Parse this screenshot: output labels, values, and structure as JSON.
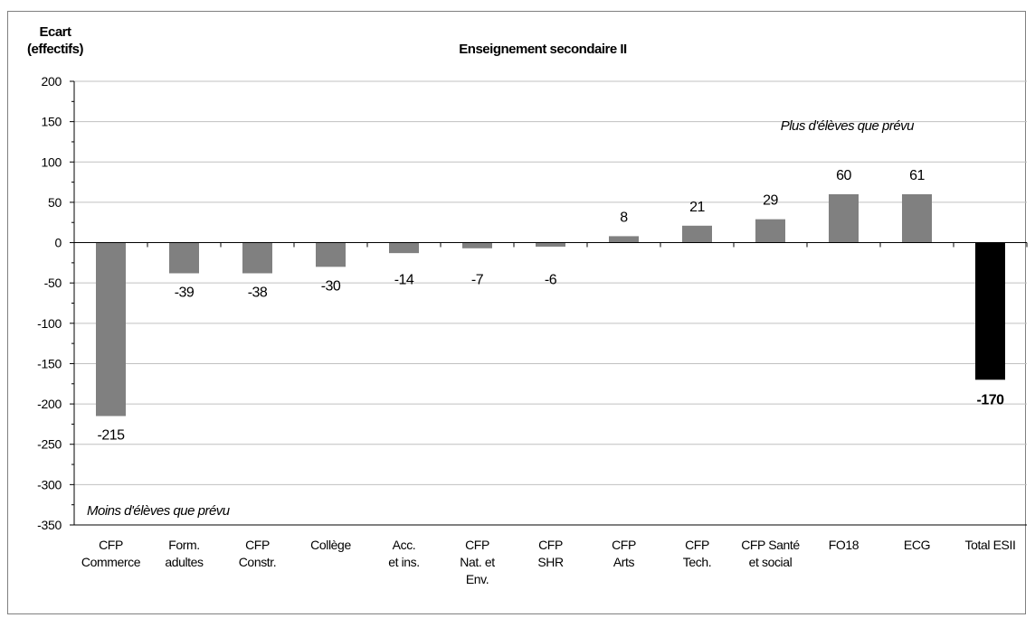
{
  "chart_data": {
    "type": "bar",
    "title": "Enseignement secondaire II",
    "ylabel": [
      "Ecart",
      "(effectifs)"
    ],
    "xlabel": "",
    "ylim": [
      -350,
      200
    ],
    "yticks": [
      200,
      150,
      100,
      50,
      0,
      -50,
      -100,
      -150,
      -200,
      -250,
      -300,
      -350
    ],
    "grid": true,
    "categories": [
      [
        "CFP",
        "Commerce"
      ],
      [
        "Form.",
        "adultes"
      ],
      [
        "CFP",
        "Constr."
      ],
      [
        "Collège"
      ],
      [
        "Acc.",
        "et ins."
      ],
      [
        "CFP",
        "Nat. et",
        "Env."
      ],
      [
        "CFP",
        "SHR"
      ],
      [
        "CFP",
        "Arts"
      ],
      [
        "CFP",
        "Tech."
      ],
      [
        "CFP Santé",
        "et social"
      ],
      [
        "FO18"
      ],
      [
        "ECG"
      ],
      [
        "Total ESII"
      ]
    ],
    "values": [
      -215,
      -39,
      -38,
      -30,
      -14,
      -7,
      -6,
      8,
      21,
      29,
      60,
      61,
      -170
    ],
    "bar_plot_values": [
      -215,
      -38,
      -38,
      -30,
      -13,
      -7,
      -5,
      8,
      21,
      29,
      60,
      60,
      -170
    ],
    "colors": {
      "bars": "#808080",
      "total": "#000000",
      "grid": "#c0c0c0",
      "axis": "#000000"
    },
    "annotations": {
      "top_right": "Plus d'élèves que prévu",
      "bottom_left": "Moins d'élèves que prévu"
    }
  }
}
